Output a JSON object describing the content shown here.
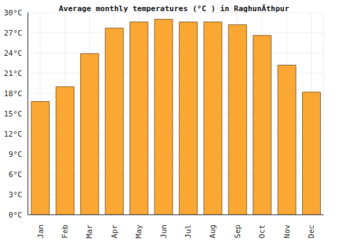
{
  "chart_data": {
    "type": "bar",
    "title": "Average monthly temperatures (°C ) in RaghunÄthpur",
    "categories": [
      "Jan",
      "Feb",
      "Mar",
      "Apr",
      "May",
      "Jun",
      "Jul",
      "Aug",
      "Sep",
      "Oct",
      "Nov",
      "Dec"
    ],
    "values": [
      16.8,
      19.0,
      23.9,
      27.7,
      28.6,
      29.0,
      28.6,
      28.6,
      28.2,
      26.6,
      22.2,
      18.2
    ],
    "color": "#fba733",
    "ylim": [
      0,
      30
    ],
    "yticks": [
      {
        "value": 0,
        "label": "0°C"
      },
      {
        "value": 3,
        "label": "3°C"
      },
      {
        "value": 6,
        "label": "6°C"
      },
      {
        "value": 9,
        "label": "9°C"
      },
      {
        "value": 12,
        "label": "12°C"
      },
      {
        "value": 15,
        "label": "15°C"
      },
      {
        "value": 18,
        "label": "18°C"
      },
      {
        "value": 21,
        "label": "21°C"
      },
      {
        "value": 24,
        "label": "24°C"
      },
      {
        "value": 27,
        "label": "27°C"
      },
      {
        "value": 30,
        "label": "30°C"
      }
    ],
    "grid": true
  }
}
